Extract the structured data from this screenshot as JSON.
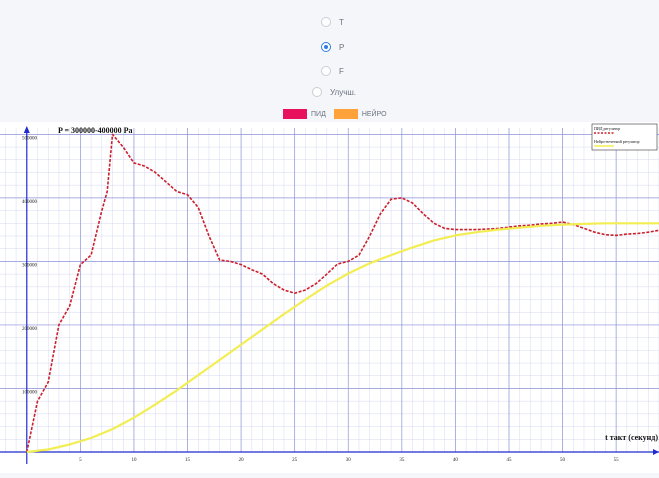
{
  "controls": {
    "radios": [
      {
        "label": "T",
        "checked": false
      },
      {
        "label": "P",
        "checked": true
      },
      {
        "label": "F",
        "checked": false
      },
      {
        "label": "Улучш.",
        "checked": false
      }
    ],
    "buttons": [
      {
        "label": "ПИД",
        "color": "#e8115c"
      },
      {
        "label": "НЕЙРО",
        "color": "#ffa23a"
      }
    ]
  },
  "chart_data": {
    "type": "line",
    "title": "P = 300000-400000 Pa",
    "xlabel": "t такт (секунд)",
    "ylabel": "",
    "xlim": [
      -2.5,
      59
    ],
    "ylim": [
      0,
      510000
    ],
    "xticks": [
      5,
      10,
      15,
      20,
      25,
      30,
      35,
      40,
      45,
      50,
      55
    ],
    "yticks": [
      100000,
      200000,
      300000,
      400000,
      500000
    ],
    "grid": true,
    "legend_position": "top-right",
    "series": [
      {
        "name": "ПИД регулятор",
        "color": "#cc1f2b",
        "dashed": true,
        "x": [
          0,
          1,
          2,
          3,
          4,
          5,
          6,
          7,
          7.5,
          8,
          9,
          10,
          11,
          12,
          13,
          14,
          15,
          16,
          17,
          18,
          19,
          20,
          21,
          22,
          23,
          24,
          25,
          26,
          27,
          28,
          29,
          30,
          31,
          32,
          33,
          34,
          35,
          36,
          37,
          38,
          39,
          40,
          41,
          42,
          43,
          44,
          45,
          46,
          47,
          48,
          49,
          50,
          51,
          52,
          53,
          54,
          55,
          56,
          57,
          58,
          59
        ],
        "y": [
          0,
          80000,
          110000,
          200000,
          230000,
          295000,
          310000,
          380000,
          410000,
          500000,
          480000,
          455000,
          450000,
          440000,
          425000,
          410000,
          405000,
          385000,
          340000,
          302000,
          300000,
          295000,
          287000,
          280000,
          265000,
          255000,
          250000,
          255000,
          265000,
          280000,
          296000,
          300000,
          310000,
          340000,
          375000,
          398000,
          400000,
          392000,
          375000,
          360000,
          352000,
          350000,
          350000,
          350000,
          351000,
          352000,
          354000,
          356000,
          357000,
          359000,
          360000,
          362000,
          358000,
          352000,
          346000,
          342000,
          341000,
          343000,
          344000,
          346000,
          349000
        ]
      },
      {
        "name": "Нейро-нечеткий регулятор",
        "color": "#f2ee52",
        "dashed": false,
        "x": [
          0,
          2,
          4,
          6,
          8,
          10,
          12,
          14,
          16,
          18,
          20,
          22,
          24,
          26,
          28,
          30,
          32,
          34,
          36,
          38,
          40,
          42,
          44,
          46,
          48,
          50,
          52,
          54,
          56,
          58,
          59
        ],
        "y": [
          0,
          4000,
          12000,
          22000,
          36000,
          54000,
          75000,
          97000,
          121000,
          145000,
          169000,
          193000,
          217000,
          240000,
          262000,
          281000,
          297000,
          310000,
          322000,
          333000,
          341000,
          346000,
          350000,
          353000,
          356000,
          358000,
          359000,
          360000,
          360000,
          360000,
          360000
        ]
      }
    ]
  }
}
